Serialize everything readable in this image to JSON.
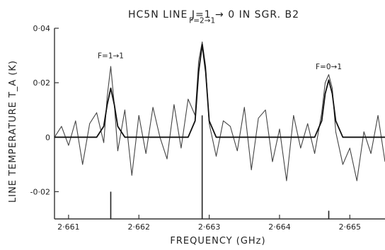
{
  "chart_data": {
    "type": "line",
    "title": "HC5N LINE J=1 → 0 IN SGR. B2",
    "xlabel": "FREQUENCY (GHz)",
    "ylabel": "LINE TEMPERATURE  T_A (K)",
    "xlim": [
      2.6608,
      2.6655
    ],
    "ylim": [
      -0.03,
      0.04
    ],
    "x_ticks": [
      {
        "value": 2.661,
        "label": "2·661"
      },
      {
        "value": 2.662,
        "label": "2·662"
      },
      {
        "value": 2.663,
        "label": "2·663"
      },
      {
        "value": 2.664,
        "label": "2·664"
      },
      {
        "value": 2.665,
        "label": "2·665"
      }
    ],
    "y_ticks": [
      {
        "value": 0.04,
        "label": "0·04"
      },
      {
        "value": 0.02,
        "label": "0·02"
      },
      {
        "value": 0,
        "label": "0"
      },
      {
        "value": -0.02,
        "label": "-0·02"
      }
    ],
    "grid": false,
    "series": [
      {
        "style": "observed",
        "x": [
          2.6608,
          2.6609,
          2.661,
          2.6611,
          2.6612,
          2.6613,
          2.6614,
          2.6615,
          2.66155,
          2.6616,
          2.66165,
          2.6617,
          2.6618,
          2.6619,
          2.662,
          2.6621,
          2.6622,
          2.6623,
          2.6624,
          2.6625,
          2.6626,
          2.6627,
          2.6628,
          2.66285,
          2.6629,
          2.66295,
          2.663,
          2.6631,
          2.6632,
          2.6633,
          2.6634,
          2.6635,
          2.6636,
          2.6637,
          2.6638,
          2.6639,
          2.664,
          2.6641,
          2.6642,
          2.6643,
          2.6644,
          2.6645,
          2.6646,
          2.66465,
          2.6647,
          2.66475,
          2.6648,
          2.6649,
          2.665,
          2.6651,
          2.6652,
          2.6653,
          2.6654,
          2.6655
        ],
        "y": [
          0.0,
          0.004,
          -0.003,
          0.006,
          -0.01,
          0.005,
          0.009,
          -0.002,
          0.015,
          0.026,
          0.012,
          -0.005,
          0.01,
          -0.014,
          0.008,
          -0.006,
          0.011,
          0.0,
          -0.008,
          0.012,
          -0.004,
          0.014,
          0.008,
          0.028,
          0.035,
          0.026,
          0.005,
          -0.007,
          0.006,
          0.004,
          -0.005,
          0.011,
          -0.012,
          0.007,
          0.01,
          -0.009,
          0.003,
          -0.016,
          0.008,
          -0.004,
          0.005,
          -0.006,
          0.009,
          0.02,
          0.023,
          0.018,
          0.002,
          -0.01,
          -0.004,
          -0.016,
          0.002,
          -0.006,
          0.008,
          -0.009
        ]
      },
      {
        "style": "fit",
        "x": [
          2.6608,
          2.6614,
          2.6615,
          2.66155,
          2.6616,
          2.66165,
          2.6617,
          2.6618,
          2.6627,
          2.6628,
          2.66285,
          2.6629,
          2.66295,
          2.663,
          2.6631,
          2.6645,
          2.6646,
          2.66465,
          2.6647,
          2.66475,
          2.6648,
          2.6649,
          2.6655
        ],
        "y": [
          0,
          0.0,
          0.004,
          0.012,
          0.018,
          0.012,
          0.004,
          0.0,
          0.0,
          0.006,
          0.024,
          0.034,
          0.024,
          0.006,
          0.0,
          0.0,
          0.006,
          0.016,
          0.021,
          0.016,
          0.006,
          0.0,
          0
        ]
      }
    ],
    "markers": [
      {
        "x": 2.6616,
        "y_top": -0.02
      },
      {
        "x": 2.6629,
        "y_top": 0.008
      },
      {
        "x": 2.6647,
        "y_top": -0.027
      }
    ],
    "annotations": [
      {
        "text": "F=1→1",
        "x": 2.6616,
        "y": 0.029
      },
      {
        "text": "F=2→1",
        "x": 2.6629,
        "y": 0.042
      },
      {
        "text": "F=0→1",
        "x": 2.6647,
        "y": 0.025
      }
    ]
  }
}
